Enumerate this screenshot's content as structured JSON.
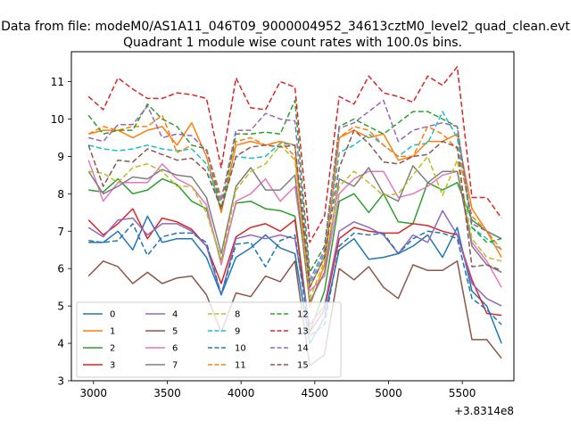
{
  "figure": {
    "suptitle": "Data from file: modeM0/AS1A11_046T09_9000004952_34613cztM0_level2_quad_clean.evt",
    "offset_label": "+3.8314e8"
  },
  "chart_data": {
    "type": "line",
    "title": "Quadrant 1 module wise count rates with 100.0s bins.",
    "xlabel": "",
    "ylabel": "",
    "xlim": [
      2850,
      5850
    ],
    "ylim": [
      3,
      11.8
    ],
    "xticks": [
      3000,
      3500,
      4000,
      4500,
      5000,
      5500
    ],
    "xtick_labels": [
      "3000",
      "3500",
      "4000",
      "4500",
      "5000",
      "5500"
    ],
    "yticks": [
      3,
      4,
      5,
      6,
      7,
      8,
      9,
      10,
      11
    ],
    "ytick_labels": [
      "3",
      "4",
      "5",
      "6",
      "7",
      "8",
      "9",
      "10",
      "11"
    ],
    "grid": false,
    "legend_position": "lower-left",
    "x": [
      2966,
      3066,
      3166,
      3266,
      3366,
      3466,
      3566,
      3666,
      3766,
      3866,
      3966,
      4066,
      4166,
      4266,
      4366,
      4466,
      4566,
      4666,
      4766,
      4866,
      4966,
      5066,
      5166,
      5266,
      5366,
      5466,
      5566,
      5666,
      5766
    ],
    "series": [
      {
        "name": "0",
        "color": "#1f77b4",
        "dash": "solid",
        "values": [
          6.7,
          6.7,
          7.0,
          6.5,
          7.4,
          6.7,
          6.8,
          6.8,
          6.3,
          5.3,
          6.3,
          6.55,
          6.9,
          6.55,
          6.4,
          4.0,
          4.7,
          6.5,
          6.8,
          6.25,
          6.3,
          6.4,
          6.6,
          6.9,
          6.3,
          7.1,
          5.4,
          5.0,
          4.0
        ]
      },
      {
        "name": "1",
        "color": "#ff7f0e",
        "dash": "solid",
        "values": [
          9.6,
          9.7,
          9.7,
          9.5,
          9.7,
          9.8,
          9.3,
          9.9,
          9.0,
          7.5,
          9.3,
          9.4,
          9.3,
          9.4,
          9.3,
          5.0,
          6.1,
          9.5,
          9.7,
          9.5,
          9.6,
          8.9,
          9.0,
          9.4,
          9.4,
          9.6,
          7.6,
          7.0,
          6.3
        ]
      },
      {
        "name": "2",
        "color": "#2ca02c",
        "dash": "solid",
        "values": [
          8.1,
          8.05,
          8.4,
          8.0,
          8.1,
          8.4,
          8.25,
          7.8,
          7.6,
          6.2,
          7.75,
          7.8,
          7.6,
          7.55,
          7.4,
          4.3,
          5.4,
          7.8,
          8.0,
          7.5,
          8.0,
          7.25,
          7.2,
          8.3,
          8.1,
          8.3,
          7.3,
          7.0,
          6.8
        ]
      },
      {
        "name": "3",
        "color": "#d62728",
        "dash": "solid",
        "values": [
          7.3,
          6.9,
          7.2,
          7.6,
          6.8,
          7.35,
          7.25,
          7.05,
          6.6,
          5.6,
          6.85,
          7.1,
          7.2,
          7.0,
          7.3,
          4.3,
          4.9,
          6.8,
          7.1,
          7.0,
          6.95,
          6.95,
          7.2,
          7.15,
          7.0,
          6.9,
          5.7,
          4.8,
          4.75
        ]
      },
      {
        "name": "4",
        "color": "#9467bd",
        "dash": "solid",
        "values": [
          7.1,
          6.85,
          7.3,
          7.35,
          6.9,
          7.2,
          7.2,
          7.0,
          6.6,
          5.3,
          6.8,
          6.9,
          6.8,
          6.9,
          6.8,
          4.5,
          5.0,
          7.0,
          7.25,
          7.1,
          6.9,
          6.4,
          6.9,
          6.7,
          7.55,
          6.9,
          5.6,
          5.2,
          5.0
        ]
      },
      {
        "name": "5",
        "color": "#8c564b",
        "dash": "solid",
        "values": [
          5.8,
          6.2,
          6.05,
          5.6,
          5.9,
          5.6,
          5.75,
          5.8,
          5.3,
          4.3,
          5.35,
          5.25,
          5.8,
          5.65,
          6.2,
          3.4,
          3.7,
          6.0,
          5.7,
          6.05,
          5.5,
          5.2,
          6.1,
          5.95,
          5.95,
          6.2,
          4.1,
          4.1,
          3.6
        ]
      },
      {
        "name": "6",
        "color": "#e377c2",
        "dash": "solid",
        "values": [
          8.9,
          7.8,
          8.3,
          8.3,
          8.3,
          8.8,
          8.4,
          8.2,
          7.7,
          6.1,
          7.8,
          8.0,
          8.4,
          7.8,
          8.2,
          5.4,
          5.8,
          8.0,
          8.4,
          8.6,
          8.6,
          7.9,
          8.0,
          8.2,
          8.5,
          8.6,
          6.7,
          6.2,
          5.5
        ]
      },
      {
        "name": "7",
        "color": "#7f7f7f",
        "dash": "solid",
        "values": [
          8.6,
          8.0,
          8.2,
          8.45,
          8.4,
          8.65,
          8.5,
          8.45,
          7.9,
          6.4,
          8.2,
          8.7,
          8.1,
          8.1,
          8.5,
          5.1,
          5.9,
          8.4,
          8.2,
          8.7,
          8.0,
          7.8,
          8.75,
          8.3,
          8.6,
          8.6,
          6.6,
          6.1,
          5.9
        ]
      },
      {
        "name": "8",
        "color": "#bcbd22",
        "dash": "dashed",
        "values": [
          8.6,
          8.55,
          8.3,
          8.7,
          8.8,
          8.6,
          8.2,
          8.2,
          7.5,
          6.2,
          8.1,
          8.6,
          8.8,
          9.3,
          8.9,
          5.2,
          6.2,
          8.2,
          8.6,
          8.3,
          7.95,
          8.0,
          8.5,
          9.0,
          7.95,
          8.9,
          6.8,
          6.3,
          6.2
        ]
      },
      {
        "name": "9",
        "color": "#17becf",
        "dash": "dashed",
        "values": [
          9.3,
          9.2,
          9.15,
          9.2,
          9.3,
          9.2,
          9.15,
          9.2,
          8.8,
          7.6,
          9.0,
          8.95,
          9.0,
          9.35,
          9.3,
          5.6,
          6.4,
          9.1,
          9.3,
          9.6,
          9.3,
          9.0,
          9.3,
          9.35,
          10.2,
          9.5,
          7.1,
          6.8,
          6.5
        ]
      },
      {
        "name": "10",
        "color": "#1f77b4",
        "dash": "dashed",
        "values": [
          6.75,
          6.7,
          6.75,
          7.2,
          6.35,
          6.85,
          6.95,
          6.95,
          6.7,
          5.3,
          6.65,
          6.7,
          6.05,
          6.75,
          6.9,
          4.2,
          4.5,
          6.6,
          6.95,
          6.9,
          6.95,
          6.4,
          6.8,
          7.0,
          6.95,
          6.8,
          5.2,
          4.9,
          4.5
        ]
      },
      {
        "name": "11",
        "color": "#ff7f0e",
        "dash": "dashed",
        "values": [
          9.6,
          9.8,
          9.7,
          9.8,
          9.8,
          10.1,
          9.1,
          9.3,
          9.2,
          7.9,
          9.4,
          9.5,
          9.3,
          9.4,
          9.0,
          5.5,
          6.3,
          9.5,
          9.8,
          9.7,
          9.3,
          9.0,
          9.0,
          9.8,
          9.6,
          9.2,
          7.4,
          7.0,
          6.5
        ]
      },
      {
        "name": "12",
        "color": "#2ca02c",
        "dash": "dashed",
        "values": [
          10.1,
          9.6,
          9.7,
          9.7,
          10.4,
          10.0,
          9.8,
          9.3,
          9.2,
          7.6,
          9.6,
          9.6,
          9.65,
          9.6,
          10.5,
          5.9,
          6.6,
          9.8,
          10.0,
          9.8,
          9.6,
          9.9,
          10.2,
          10.2,
          10.0,
          9.8,
          7.1,
          6.7,
          6.8
        ]
      },
      {
        "name": "13",
        "color": "#d62728",
        "dash": "dashed",
        "values": [
          10.6,
          10.25,
          11.1,
          10.8,
          10.55,
          10.55,
          10.7,
          10.65,
          10.55,
          8.7,
          11.1,
          10.3,
          10.25,
          11.0,
          10.85,
          6.7,
          7.4,
          10.6,
          10.4,
          11.15,
          10.7,
          10.6,
          10.45,
          11.15,
          10.9,
          11.4,
          7.9,
          7.9,
          7.35
        ]
      },
      {
        "name": "14",
        "color": "#9467bd",
        "dash": "dashed",
        "values": [
          9.5,
          9.4,
          9.85,
          9.85,
          10.35,
          9.5,
          9.6,
          9.55,
          9.15,
          7.8,
          9.7,
          9.7,
          10.15,
          10.0,
          9.95,
          5.7,
          6.5,
          9.75,
          9.9,
          10.2,
          10.5,
          9.4,
          9.7,
          9.8,
          9.9,
          9.8,
          7.2,
          7.0,
          6.8
        ]
      },
      {
        "name": "15",
        "color": "#8c564b",
        "dash": "dashed",
        "values": [
          9.3,
          8.2,
          8.9,
          8.85,
          9.2,
          9.05,
          8.9,
          8.95,
          8.6,
          7.6,
          9.0,
          9.25,
          9.3,
          9.25,
          9.3,
          5.5,
          6.3,
          8.7,
          9.7,
          9.35,
          8.85,
          8.8,
          9.0,
          9.05,
          9.4,
          9.25,
          6.05,
          6.1,
          5.95
        ]
      }
    ]
  }
}
